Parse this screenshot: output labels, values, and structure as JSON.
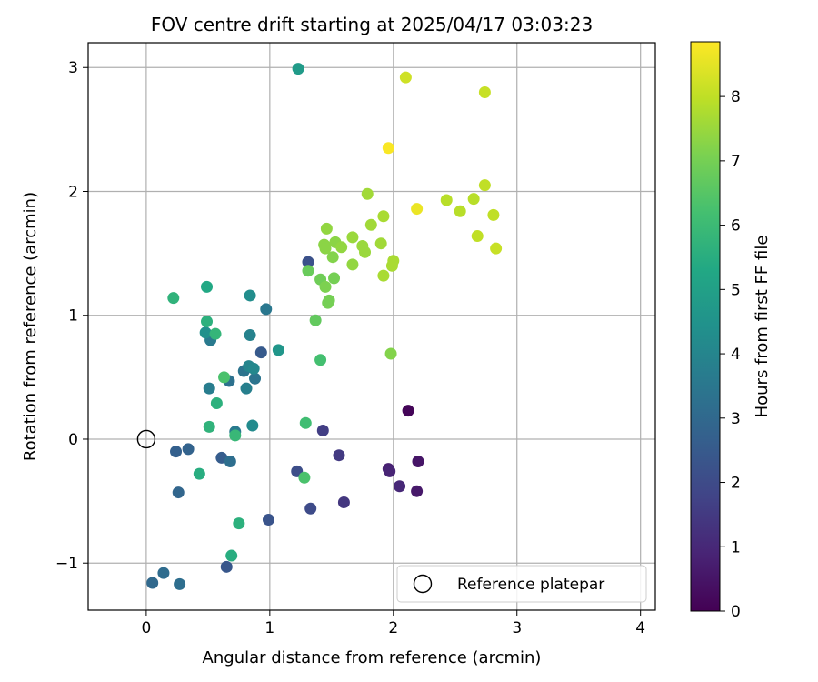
{
  "chart_data": {
    "type": "scatter",
    "title": "FOV centre drift starting at 2025/04/17 03:03:23",
    "xlabel": "Angular distance from reference (arcmin)",
    "ylabel": "Rotation from reference (arcmin)",
    "xlim": [
      -0.47,
      4.12
    ],
    "ylim": [
      -1.38,
      3.2
    ],
    "xticks": [
      0,
      1,
      2,
      3,
      4
    ],
    "yticks": [
      -1,
      0,
      1,
      2,
      3
    ],
    "xtick_labels": [
      "0",
      "1",
      "2",
      "3",
      "4"
    ],
    "ytick_labels": [
      "−1",
      "0",
      "1",
      "2",
      "3"
    ],
    "grid": true,
    "colormap": "viridis",
    "colorbar": {
      "label": "Hours from first FF file",
      "min": 0,
      "max": 8.85,
      "ticks": [
        0,
        1,
        2,
        3,
        4,
        5,
        6,
        7,
        8
      ],
      "tick_labels": [
        "0",
        "1",
        "2",
        "3",
        "4",
        "5",
        "6",
        "7",
        "8"
      ]
    },
    "legend": {
      "placement": "lower-right",
      "label": "Reference platepar"
    },
    "reference": {
      "x": 0,
      "y": 0
    },
    "points": [
      {
        "x": 2.12,
        "y": 0.23,
        "c": 0.1
      },
      {
        "x": 2.2,
        "y": -0.18,
        "c": 0.5
      },
      {
        "x": 2.19,
        "y": -0.42,
        "c": 0.6
      },
      {
        "x": 1.96,
        "y": -0.24,
        "c": 0.8
      },
      {
        "x": 1.97,
        "y": -0.26,
        "c": 0.9
      },
      {
        "x": 2.05,
        "y": -0.38,
        "c": 1.0
      },
      {
        "x": 1.6,
        "y": -0.51,
        "c": 1.4
      },
      {
        "x": 1.56,
        "y": -0.13,
        "c": 1.5
      },
      {
        "x": 1.43,
        "y": 0.07,
        "c": 1.6
      },
      {
        "x": 1.33,
        "y": -0.56,
        "c": 2.0
      },
      {
        "x": 1.22,
        "y": -0.26,
        "c": 2.1
      },
      {
        "x": 1.31,
        "y": 1.43,
        "c": 2.2
      },
      {
        "x": 0.99,
        "y": -0.65,
        "c": 2.3
      },
      {
        "x": 0.65,
        "y": -1.03,
        "c": 2.4
      },
      {
        "x": 0.93,
        "y": 0.7,
        "c": 2.5
      },
      {
        "x": 0.61,
        "y": -0.15,
        "c": 2.6
      },
      {
        "x": 0.24,
        "y": -0.1,
        "c": 2.7
      },
      {
        "x": 0.34,
        "y": -0.08,
        "c": 2.8
      },
      {
        "x": 0.26,
        "y": -0.43,
        "c": 2.9
      },
      {
        "x": 0.05,
        "y": -1.16,
        "c": 3.0
      },
      {
        "x": 0.14,
        "y": -1.08,
        "c": 3.1
      },
      {
        "x": 0.27,
        "y": -1.17,
        "c": 3.2
      },
      {
        "x": 0.68,
        "y": -0.18,
        "c": 3.2
      },
      {
        "x": 0.67,
        "y": 0.47,
        "c": 3.3
      },
      {
        "x": 0.79,
        "y": 0.55,
        "c": 3.4
      },
      {
        "x": 0.88,
        "y": 0.49,
        "c": 3.4
      },
      {
        "x": 0.97,
        "y": 1.05,
        "c": 3.5
      },
      {
        "x": 0.52,
        "y": 0.8,
        "c": 3.6
      },
      {
        "x": 0.72,
        "y": 0.06,
        "c": 3.6
      },
      {
        "x": 0.51,
        "y": 0.41,
        "c": 3.7
      },
      {
        "x": 0.81,
        "y": 0.41,
        "c": 3.8
      },
      {
        "x": 0.84,
        "y": 0.84,
        "c": 3.9
      },
      {
        "x": 0.83,
        "y": 0.59,
        "c": 4.0
      },
      {
        "x": 0.87,
        "y": 0.57,
        "c": 4.1
      },
      {
        "x": 0.86,
        "y": 0.11,
        "c": 4.2
      },
      {
        "x": 0.84,
        "y": 1.16,
        "c": 4.3
      },
      {
        "x": 0.48,
        "y": 0.86,
        "c": 4.4
      },
      {
        "x": 1.07,
        "y": 0.72,
        "c": 4.6
      },
      {
        "x": 1.23,
        "y": 2.99,
        "c": 4.8
      },
      {
        "x": 0.49,
        "y": 1.23,
        "c": 5.3
      },
      {
        "x": 0.57,
        "y": 0.29,
        "c": 5.6
      },
      {
        "x": 0.51,
        "y": 0.1,
        "c": 5.7
      },
      {
        "x": 0.43,
        "y": -0.28,
        "c": 5.5
      },
      {
        "x": 0.69,
        "y": -0.94,
        "c": 5.5
      },
      {
        "x": 0.75,
        "y": -0.68,
        "c": 5.6
      },
      {
        "x": 0.49,
        "y": 0.95,
        "c": 5.6
      },
      {
        "x": 0.22,
        "y": 1.14,
        "c": 5.7
      },
      {
        "x": 0.56,
        "y": 0.85,
        "c": 5.8
      },
      {
        "x": 0.72,
        "y": 0.03,
        "c": 5.9
      },
      {
        "x": 1.29,
        "y": 0.13,
        "c": 6.1
      },
      {
        "x": 1.41,
        "y": 0.64,
        "c": 6.2
      },
      {
        "x": 0.63,
        "y": 0.5,
        "c": 6.3
      },
      {
        "x": 1.28,
        "y": -0.31,
        "c": 6.3
      },
      {
        "x": 1.37,
        "y": 0.96,
        "c": 6.7
      },
      {
        "x": 1.31,
        "y": 1.36,
        "c": 6.8
      },
      {
        "x": 1.41,
        "y": 1.29,
        "c": 6.9
      },
      {
        "x": 1.52,
        "y": 1.3,
        "c": 7.0
      },
      {
        "x": 1.48,
        "y": 1.12,
        "c": 7.0
      },
      {
        "x": 1.47,
        "y": 1.1,
        "c": 7.0
      },
      {
        "x": 1.45,
        "y": 1.23,
        "c": 7.1
      },
      {
        "x": 1.98,
        "y": 0.69,
        "c": 7.2
      },
      {
        "x": 1.51,
        "y": 1.47,
        "c": 7.2
      },
      {
        "x": 1.44,
        "y": 1.57,
        "c": 7.3
      },
      {
        "x": 1.45,
        "y": 1.54,
        "c": 7.3
      },
      {
        "x": 1.53,
        "y": 1.59,
        "c": 7.3
      },
      {
        "x": 1.58,
        "y": 1.55,
        "c": 7.4
      },
      {
        "x": 1.46,
        "y": 1.7,
        "c": 7.4
      },
      {
        "x": 1.67,
        "y": 1.41,
        "c": 7.4
      },
      {
        "x": 1.67,
        "y": 1.63,
        "c": 7.5
      },
      {
        "x": 1.75,
        "y": 1.56,
        "c": 7.5
      },
      {
        "x": 1.77,
        "y": 1.51,
        "c": 7.5
      },
      {
        "x": 1.79,
        "y": 1.98,
        "c": 7.6
      },
      {
        "x": 1.82,
        "y": 1.73,
        "c": 7.6
      },
      {
        "x": 1.9,
        "y": 1.58,
        "c": 7.6
      },
      {
        "x": 1.92,
        "y": 1.8,
        "c": 7.7
      },
      {
        "x": 1.92,
        "y": 1.32,
        "c": 7.7
      },
      {
        "x": 1.99,
        "y": 1.4,
        "c": 7.7
      },
      {
        "x": 2.0,
        "y": 1.44,
        "c": 7.7
      },
      {
        "x": 2.43,
        "y": 1.93,
        "c": 7.9
      },
      {
        "x": 2.54,
        "y": 1.84,
        "c": 7.9
      },
      {
        "x": 2.65,
        "y": 1.94,
        "c": 7.9
      },
      {
        "x": 2.68,
        "y": 1.64,
        "c": 8.0
      },
      {
        "x": 2.74,
        "y": 2.05,
        "c": 8.0
      },
      {
        "x": 2.81,
        "y": 1.81,
        "c": 8.0
      },
      {
        "x": 2.83,
        "y": 1.54,
        "c": 8.1
      },
      {
        "x": 2.74,
        "y": 2.8,
        "c": 8.1
      },
      {
        "x": 2.1,
        "y": 2.92,
        "c": 8.2
      },
      {
        "x": 2.19,
        "y": 1.86,
        "c": 8.6
      },
      {
        "x": 1.96,
        "y": 2.35,
        "c": 8.8
      }
    ]
  }
}
